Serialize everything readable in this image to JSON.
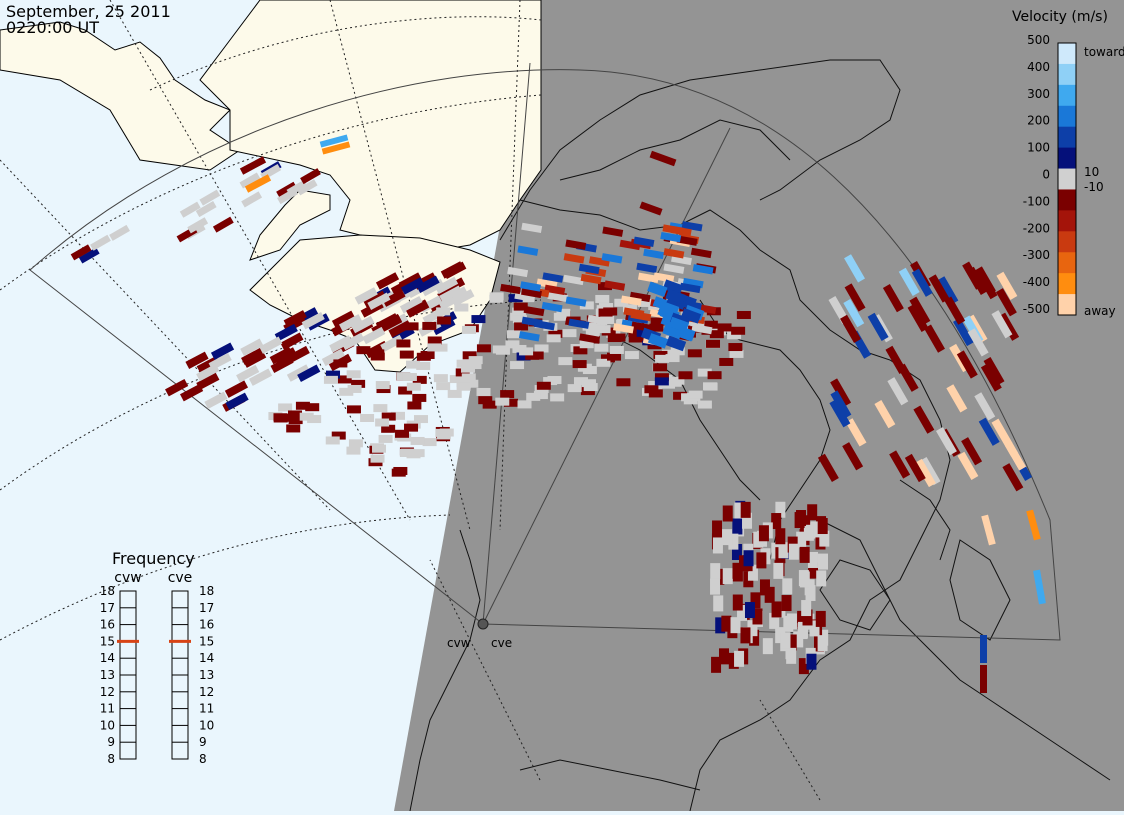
{
  "header": {
    "date": "September, 25 2011",
    "time": "0220:00 UT"
  },
  "legend": {
    "title": "Velocity (m/s)",
    "ticks": [
      "500",
      "400",
      "300",
      "200",
      "100",
      "0",
      "-100",
      "-200",
      "-300",
      "-400",
      "-500"
    ],
    "small_ticks": [
      "10",
      "-10"
    ],
    "toward_label": "toward",
    "away_label": "away",
    "colors": [
      "#cfe9fb",
      "#8fd0f6",
      "#3fa9ef",
      "#1a78d8",
      "#0d3fa8",
      "#05107a",
      "#d0d0d0",
      "#7a0000",
      "#a4140a",
      "#c93a10",
      "#e8650f",
      "#ff8d0f",
      "#ffd2aa"
    ]
  },
  "frequency": {
    "title": "Frequency",
    "radars": [
      {
        "label": "cvw",
        "value": 15
      },
      {
        "label": "cve",
        "value": 15
      }
    ],
    "scale": [
      "18",
      "17",
      "16",
      "15",
      "14",
      "13",
      "12",
      "11",
      "10",
      "9",
      "8"
    ],
    "indicator_color": "#d84315"
  },
  "map": {
    "radar_labels": [
      "cvw",
      "cve"
    ],
    "day_color": "#eaf6fd",
    "land_day_color": "#fdfaea",
    "night_color": "#949494"
  }
}
